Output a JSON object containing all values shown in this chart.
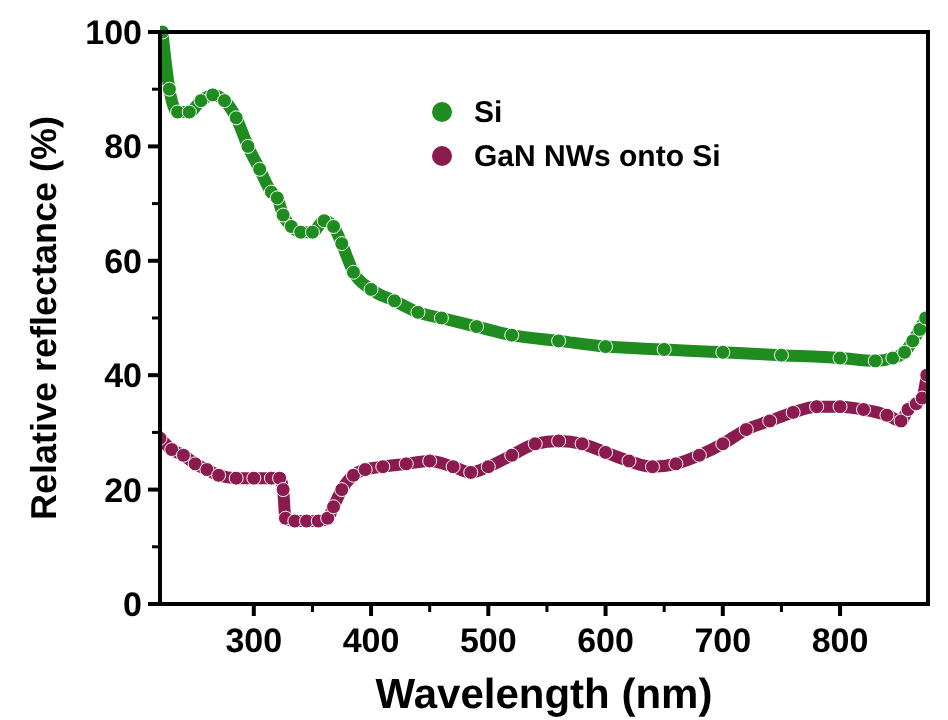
{
  "chart_data": {
    "type": "line",
    "xlabel": "Wavelength (nm)",
    "ylabel": "Relative reflectance (%)",
    "xlim": [
      220,
      875
    ],
    "xticks": [
      300,
      400,
      500,
      600,
      700,
      800
    ],
    "ylim": [
      0,
      100
    ],
    "yticks": [
      0,
      20,
      40,
      60,
      80,
      100
    ],
    "marker": "circle",
    "legend": "top",
    "grid": false,
    "series": [
      {
        "name": "Si",
        "color": "#1e8c1e",
        "x": [
          222,
          228,
          235,
          245,
          255,
          265,
          275,
          285,
          295,
          305,
          315,
          320,
          325,
          332,
          340,
          350,
          360,
          368,
          375,
          385,
          400,
          420,
          440,
          460,
          490,
          520,
          560,
          600,
          650,
          700,
          750,
          800,
          830,
          845,
          855,
          862,
          868,
          873
        ],
        "values": [
          100,
          90,
          86,
          86,
          88,
          89,
          88,
          85,
          80,
          76,
          72,
          71,
          68,
          66,
          65,
          65,
          67,
          66,
          63,
          58,
          55,
          53,
          51,
          50,
          48.5,
          47,
          46,
          45,
          44.5,
          44,
          43.5,
          43,
          42.5,
          43,
          44,
          46,
          48,
          50
        ]
      },
      {
        "name": "GaN NWs onto Si",
        "color": "#8b1a4e",
        "x": [
          220,
          230,
          240,
          250,
          260,
          270,
          285,
          300,
          315,
          322,
          325,
          327,
          335,
          345,
          355,
          363,
          368,
          375,
          385,
          395,
          410,
          430,
          450,
          470,
          485,
          500,
          520,
          540,
          560,
          580,
          600,
          620,
          640,
          660,
          680,
          700,
          720,
          740,
          760,
          780,
          800,
          820,
          840,
          852,
          858,
          865,
          870,
          874
        ],
        "values": [
          29,
          27,
          26,
          24.5,
          23.5,
          22.5,
          22,
          22,
          22,
          22,
          20,
          15,
          14.5,
          14.5,
          14.5,
          15,
          17,
          20,
          22.5,
          23.5,
          24,
          24.5,
          25,
          24,
          23,
          24,
          26,
          28,
          28.5,
          28,
          26.5,
          25,
          24,
          24.5,
          26,
          28,
          30.5,
          32,
          33.5,
          34.5,
          34.5,
          34,
          33,
          32,
          34,
          35,
          36,
          40
        ]
      }
    ]
  }
}
